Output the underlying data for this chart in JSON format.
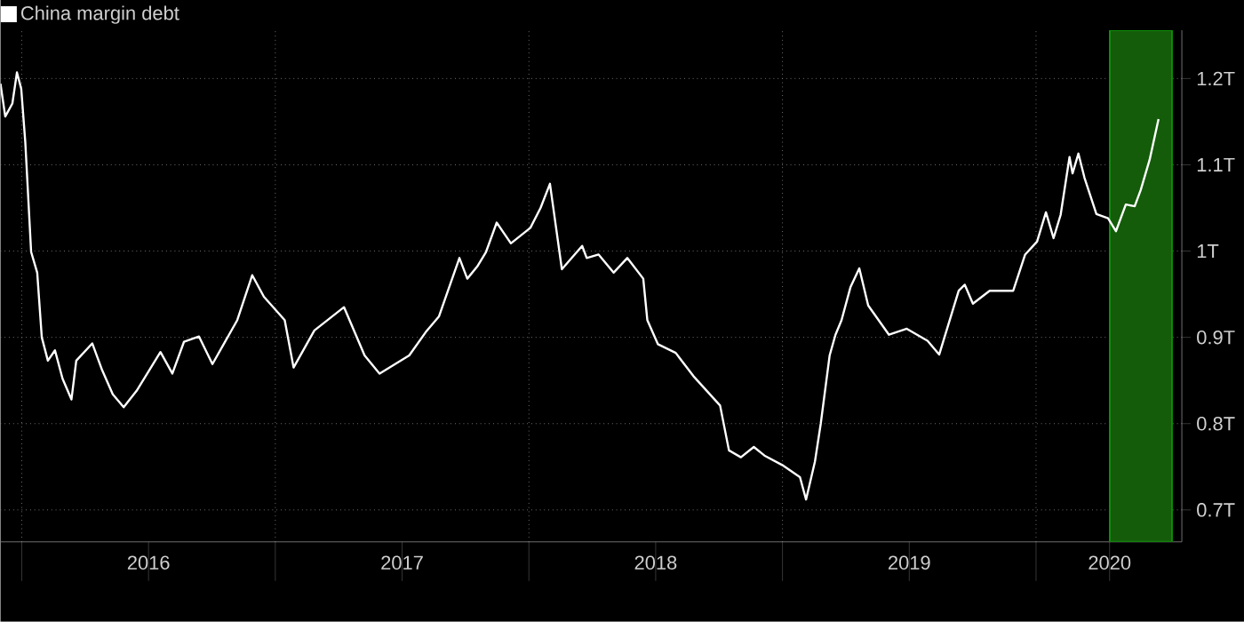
{
  "chart_data": {
    "type": "line",
    "x": [
      2015.916,
      2015.935,
      2015.963,
      2015.981,
      2015.998,
      2016.014,
      2016.037,
      2016.061,
      2016.079,
      2016.103,
      2016.131,
      2016.161,
      2016.196,
      2016.215,
      2016.278,
      2016.317,
      2016.359,
      2016.402,
      2016.453,
      2016.547,
      2016.594,
      2016.64,
      2016.699,
      2016.752,
      2016.85,
      2016.909,
      2016.955,
      2017.037,
      2017.072,
      2017.154,
      2017.271,
      2017.352,
      2017.411,
      2017.528,
      2017.593,
      2017.645,
      2017.726,
      2017.757,
      2017.796,
      2017.831,
      2017.873,
      2017.929,
      2018.006,
      2018.046,
      2018.083,
      2018.13,
      2018.21,
      2018.228,
      2018.275,
      2018.334,
      2018.388,
      2018.451,
      2018.467,
      2018.509,
      2018.579,
      2018.649,
      2018.754,
      2018.789,
      2018.836,
      2018.887,
      2018.929,
      2018.999,
      2019.069,
      2019.093,
      2019.128,
      2019.151,
      2019.186,
      2019.209,
      2019.233,
      2019.268,
      2019.303,
      2019.338,
      2019.42,
      2019.49,
      2019.572,
      2019.618,
      2019.695,
      2019.719,
      2019.751,
      2019.817,
      2019.91,
      2019.957,
      2020.004,
      2020.039,
      2020.069,
      2020.097,
      2020.132,
      2020.144,
      2020.167,
      2020.191,
      2020.238,
      2020.284,
      2020.315,
      2020.354,
      2020.389,
      2020.413,
      2020.448,
      2020.483
    ],
    "series": [
      {
        "name": "China margin debt",
        "color": "#ffffff",
        "values": [
          1.194,
          1.156,
          1.171,
          1.207,
          1.188,
          1.126,
          0.999,
          0.975,
          0.9,
          0.873,
          0.885,
          0.852,
          0.828,
          0.873,
          0.893,
          0.862,
          0.834,
          0.819,
          0.838,
          0.883,
          0.858,
          0.895,
          0.901,
          0.869,
          0.92,
          0.972,
          0.947,
          0.92,
          0.865,
          0.908,
          0.935,
          0.879,
          0.858,
          0.879,
          0.906,
          0.924,
          0.992,
          0.968,
          0.982,
          0.999,
          1.033,
          1.009,
          1.027,
          1.05,
          1.078,
          0.979,
          1.006,
          0.992,
          0.996,
          0.975,
          0.992,
          0.968,
          0.92,
          0.892,
          0.882,
          0.855,
          0.821,
          0.769,
          0.761,
          0.773,
          0.763,
          0.752,
          0.738,
          0.712,
          0.756,
          0.8,
          0.879,
          0.903,
          0.92,
          0.958,
          0.98,
          0.937,
          0.903,
          0.91,
          0.896,
          0.88,
          0.954,
          0.961,
          0.939,
          0.954,
          0.954,
          0.996,
          1.011,
          1.045,
          1.015,
          1.042,
          1.109,
          1.09,
          1.113,
          1.085,
          1.043,
          1.038,
          1.023,
          1.054,
          1.052,
          1.071,
          1.106,
          1.153
        ]
      }
    ],
    "xlim": [
      2015.916,
      2020.575
    ],
    "ylim": [
      0.663,
      1.256
    ],
    "xticks": [
      {
        "value": 2016,
        "label": null
      },
      {
        "value": 2016.5,
        "label": "2016"
      },
      {
        "value": 2017,
        "label": null
      },
      {
        "value": 2017.5,
        "label": "2017"
      },
      {
        "value": 2018,
        "label": null
      },
      {
        "value": 2018.5,
        "label": "2018"
      },
      {
        "value": 2019,
        "label": null
      },
      {
        "value": 2019.5,
        "label": "2019"
      },
      {
        "value": 2020,
        "label": null
      },
      {
        "value": 2020.29,
        "label": "2020"
      }
    ],
    "yticks": [
      {
        "value": 0.7,
        "label": "0.7T"
      },
      {
        "value": 0.8,
        "label": "0.8T"
      },
      {
        "value": 0.9,
        "label": "0.9T"
      },
      {
        "value": 1.0,
        "label": "1T"
      },
      {
        "value": 1.1,
        "label": "1.1T"
      },
      {
        "value": 1.2,
        "label": "1.2T"
      }
    ],
    "bands": [
      {
        "axis": "x",
        "from": 2020.291,
        "to": 2020.536,
        "color": "#145c0a"
      }
    ],
    "grid": true,
    "legend": "top left",
    "line_style": "solid",
    "marker": "none"
  }
}
